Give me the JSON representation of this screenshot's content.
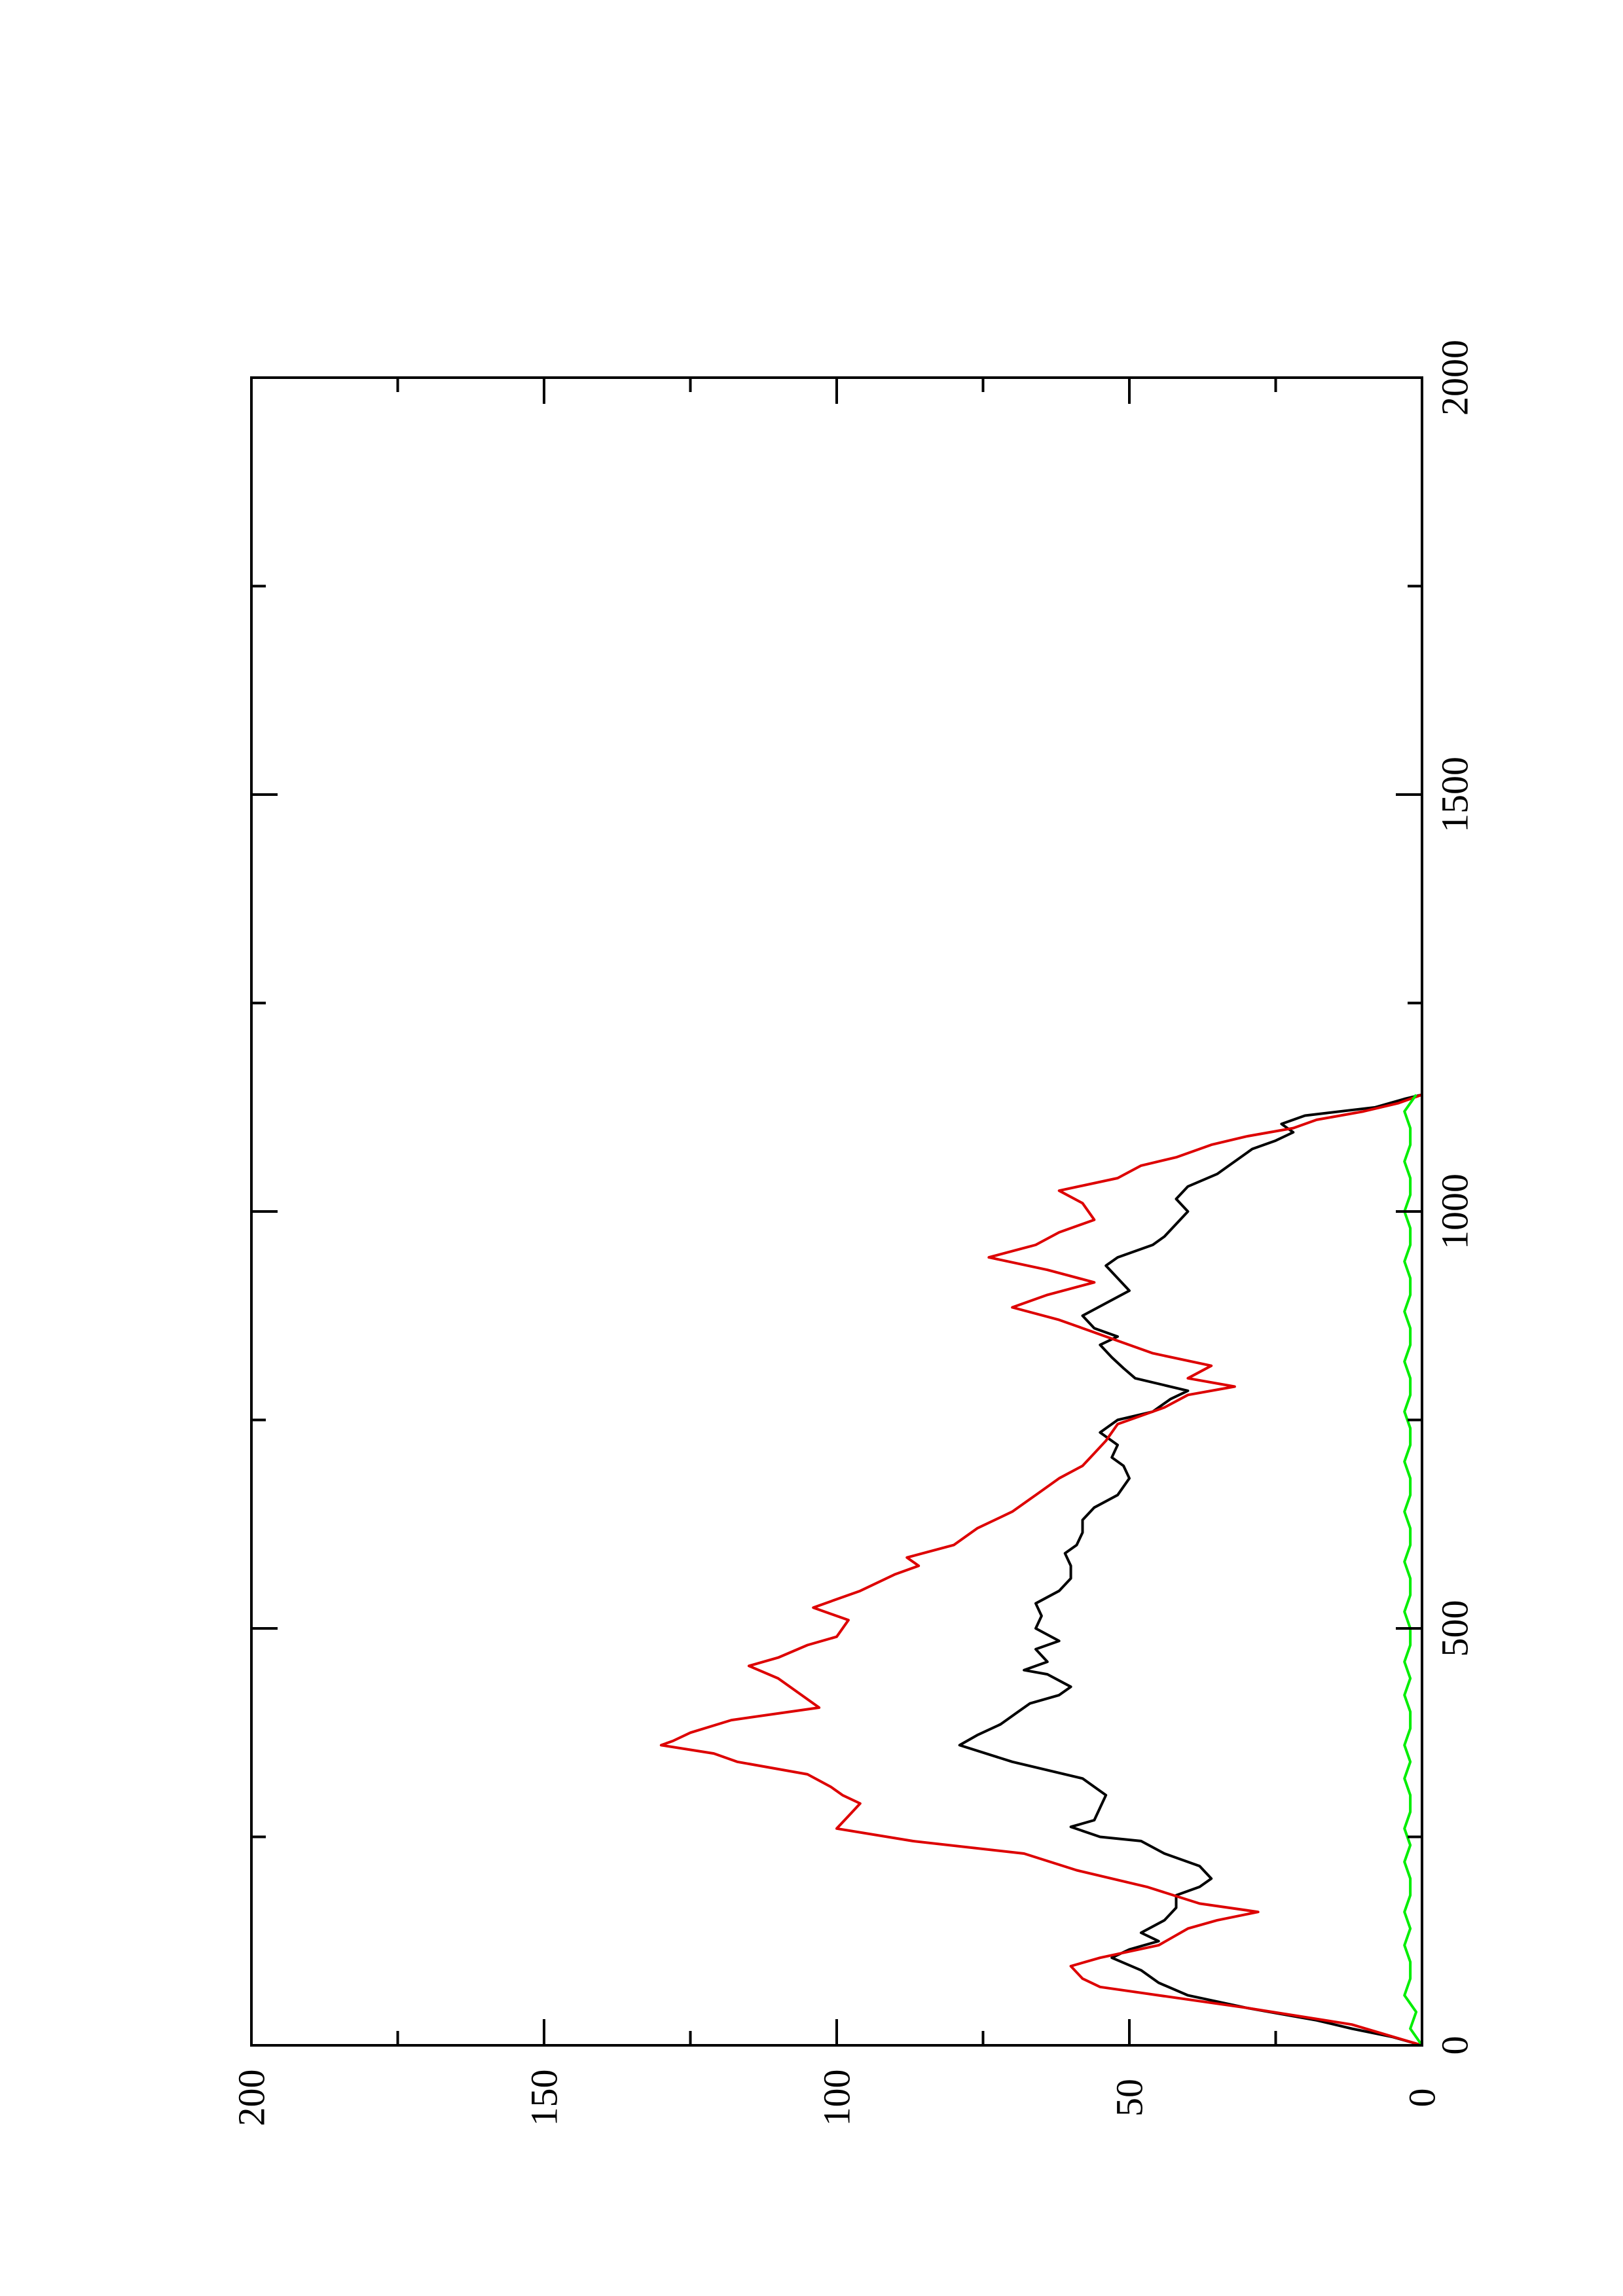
{
  "chart_data": {
    "type": "line",
    "title": "",
    "xlabel": "",
    "ylabel": "",
    "orientation": "rotated-90-clockwise",
    "xlim": [
      0,
      2000
    ],
    "ylim": [
      0,
      200
    ],
    "x_ticks": [
      "0",
      "500",
      "1000",
      "1500",
      "2000"
    ],
    "y_ticks": [
      "0",
      "50",
      "100",
      "150",
      "200"
    ],
    "grid": false,
    "legend": "none",
    "series": [
      {
        "color": "#000000",
        "points": [
          [
            0,
            0
          ],
          [
            10,
            5
          ],
          [
            20,
            12
          ],
          [
            30,
            18
          ],
          [
            45,
            30
          ],
          [
            60,
            40
          ],
          [
            75,
            45
          ],
          [
            90,
            48
          ],
          [
            105,
            53
          ],
          [
            115,
            50
          ],
          [
            125,
            45
          ],
          [
            135,
            48
          ],
          [
            150,
            44
          ],
          [
            165,
            42
          ],
          [
            180,
            42
          ],
          [
            190,
            38
          ],
          [
            200,
            36
          ],
          [
            215,
            38
          ],
          [
            230,
            44
          ],
          [
            245,
            48
          ],
          [
            250,
            55
          ],
          [
            262,
            60
          ],
          [
            270,
            56
          ],
          [
            285,
            55
          ],
          [
            300,
            54
          ],
          [
            320,
            58
          ],
          [
            340,
            70
          ],
          [
            360,
            79
          ],
          [
            372,
            76
          ],
          [
            385,
            72
          ],
          [
            400,
            69
          ],
          [
            410,
            67
          ],
          [
            420,
            62
          ],
          [
            430,
            60
          ],
          [
            445,
            64
          ],
          [
            450,
            68
          ],
          [
            460,
            64
          ],
          [
            475,
            66
          ],
          [
            485,
            62
          ],
          [
            500,
            66
          ],
          [
            515,
            65
          ],
          [
            530,
            66
          ],
          [
            545,
            62
          ],
          [
            560,
            60
          ],
          [
            575,
            60
          ],
          [
            590,
            61
          ],
          [
            600,
            59
          ],
          [
            615,
            58
          ],
          [
            630,
            58
          ],
          [
            645,
            56
          ],
          [
            660,
            52
          ],
          [
            680,
            50
          ],
          [
            695,
            51
          ],
          [
            705,
            53
          ],
          [
            720,
            52
          ],
          [
            735,
            55
          ],
          [
            750,
            52
          ],
          [
            760,
            46
          ],
          [
            775,
            43
          ],
          [
            785,
            40
          ],
          [
            800,
            49
          ],
          [
            812,
            51
          ],
          [
            825,
            53
          ],
          [
            840,
            55
          ],
          [
            850,
            52
          ],
          [
            860,
            56
          ],
          [
            875,
            58
          ],
          [
            890,
            54
          ],
          [
            905,
            50
          ],
          [
            920,
            52
          ],
          [
            935,
            54
          ],
          [
            945,
            52
          ],
          [
            960,
            46
          ],
          [
            970,
            44
          ],
          [
            985,
            42
          ],
          [
            1000,
            40
          ],
          [
            1015,
            42
          ],
          [
            1030,
            40
          ],
          [
            1045,
            35
          ],
          [
            1060,
            32
          ],
          [
            1075,
            29
          ],
          [
            1085,
            25
          ],
          [
            1095,
            22
          ],
          [
            1105,
            24
          ],
          [
            1115,
            20
          ],
          [
            1125,
            8
          ],
          [
            1135,
            3
          ],
          [
            1140,
            0
          ]
        ]
      },
      {
        "color": "#dd0000",
        "points": [
          [
            0,
            0
          ],
          [
            25,
            12
          ],
          [
            45,
            30
          ],
          [
            60,
            45
          ],
          [
            70,
            55
          ],
          [
            80,
            58
          ],
          [
            95,
            60
          ],
          [
            105,
            55
          ],
          [
            120,
            45
          ],
          [
            140,
            40
          ],
          [
            150,
            35
          ],
          [
            160,
            28
          ],
          [
            170,
            38
          ],
          [
            190,
            47
          ],
          [
            210,
            59
          ],
          [
            230,
            68
          ],
          [
            245,
            87
          ],
          [
            260,
            100
          ],
          [
            275,
            98
          ],
          [
            290,
            96
          ],
          [
            300,
            99
          ],
          [
            310,
            101
          ],
          [
            325,
            105
          ],
          [
            340,
            117
          ],
          [
            350,
            121
          ],
          [
            360,
            130
          ],
          [
            365,
            128
          ],
          [
            375,
            125
          ],
          [
            390,
            118
          ],
          [
            405,
            103
          ],
          [
            420,
            106
          ],
          [
            440,
            110
          ],
          [
            455,
            115
          ],
          [
            465,
            110
          ],
          [
            480,
            105
          ],
          [
            490,
            100
          ],
          [
            510,
            98
          ],
          [
            525,
            104
          ],
          [
            545,
            96
          ],
          [
            565,
            90
          ],
          [
            575,
            86
          ],
          [
            585,
            88
          ],
          [
            600,
            80
          ],
          [
            620,
            76
          ],
          [
            640,
            70
          ],
          [
            660,
            66
          ],
          [
            680,
            62
          ],
          [
            695,
            58
          ],
          [
            710,
            56
          ],
          [
            725,
            54
          ],
          [
            745,
            52
          ],
          [
            755,
            48
          ],
          [
            765,
            44
          ],
          [
            780,
            40
          ],
          [
            790,
            32
          ],
          [
            800,
            40
          ],
          [
            815,
            36
          ],
          [
            830,
            46
          ],
          [
            845,
            52
          ],
          [
            855,
            56
          ],
          [
            870,
            62
          ],
          [
            885,
            70
          ],
          [
            900,
            64
          ],
          [
            915,
            56
          ],
          [
            930,
            64
          ],
          [
            945,
            74
          ],
          [
            960,
            66
          ],
          [
            975,
            62
          ],
          [
            990,
            56
          ],
          [
            1010,
            58
          ],
          [
            1025,
            62
          ],
          [
            1040,
            52
          ],
          [
            1055,
            48
          ],
          [
            1065,
            42
          ],
          [
            1080,
            36
          ],
          [
            1090,
            30
          ],
          [
            1100,
            22
          ],
          [
            1110,
            18
          ],
          [
            1120,
            10
          ],
          [
            1130,
            4
          ],
          [
            1140,
            0
          ]
        ]
      },
      {
        "color": "#00ee00",
        "points": [
          [
            0,
            0
          ],
          [
            20,
            2
          ],
          [
            40,
            1
          ],
          [
            60,
            3
          ],
          [
            80,
            2
          ],
          [
            100,
            2
          ],
          [
            120,
            3
          ],
          [
            140,
            2
          ],
          [
            160,
            3
          ],
          [
            180,
            2
          ],
          [
            200,
            2
          ],
          [
            220,
            3
          ],
          [
            240,
            2
          ],
          [
            260,
            3
          ],
          [
            280,
            2
          ],
          [
            300,
            2
          ],
          [
            320,
            3
          ],
          [
            340,
            2
          ],
          [
            360,
            3
          ],
          [
            380,
            2
          ],
          [
            400,
            2
          ],
          [
            420,
            3
          ],
          [
            440,
            2
          ],
          [
            460,
            3
          ],
          [
            480,
            2
          ],
          [
            500,
            2
          ],
          [
            520,
            3
          ],
          [
            540,
            2
          ],
          [
            560,
            2
          ],
          [
            580,
            3
          ],
          [
            600,
            2
          ],
          [
            620,
            2
          ],
          [
            640,
            3
          ],
          [
            660,
            2
          ],
          [
            680,
            2
          ],
          [
            700,
            3
          ],
          [
            720,
            2
          ],
          [
            740,
            2
          ],
          [
            760,
            3
          ],
          [
            780,
            2
          ],
          [
            800,
            2
          ],
          [
            820,
            3
          ],
          [
            840,
            2
          ],
          [
            860,
            2
          ],
          [
            880,
            3
          ],
          [
            900,
            2
          ],
          [
            920,
            2
          ],
          [
            940,
            3
          ],
          [
            960,
            2
          ],
          [
            980,
            2
          ],
          [
            1000,
            3
          ],
          [
            1020,
            2
          ],
          [
            1040,
            2
          ],
          [
            1060,
            3
          ],
          [
            1080,
            2
          ],
          [
            1100,
            2
          ],
          [
            1120,
            3
          ],
          [
            1140,
            1
          ]
        ]
      }
    ]
  }
}
